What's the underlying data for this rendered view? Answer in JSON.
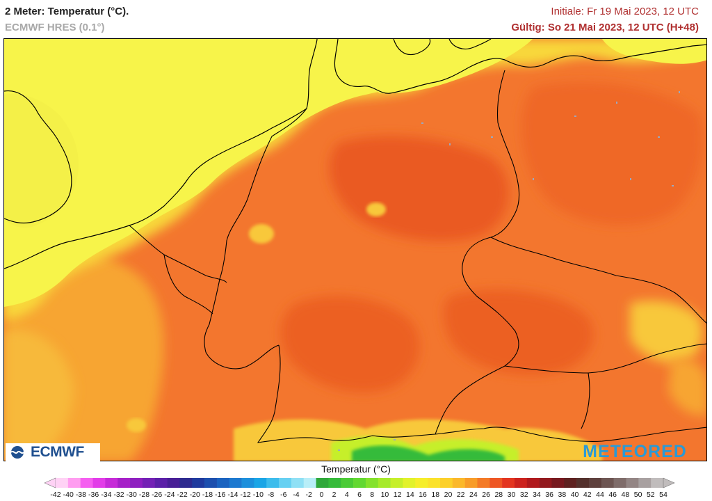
{
  "header": {
    "title": "2 Meter: Temperatur (°C).",
    "subtitle": "ECMWF HRES (0.1°)",
    "initial": "Initiale: Fr 19 Mai 2023, 12 UTC",
    "valid": "Gültig: So 21 Mai 2023, 12 UTC (H+48)"
  },
  "logos": {
    "left": "ECMWF",
    "right": "METEORED"
  },
  "legend": {
    "title": "Temperatur (°C)",
    "ticks": [
      "-42",
      "-40",
      "-38",
      "-36",
      "-34",
      "-32",
      "-30",
      "-28",
      "-26",
      "-24",
      "-22",
      "-20",
      "-18",
      "-16",
      "-14",
      "-12",
      "-10",
      "-8",
      "-6",
      "-4",
      "-2",
      "0",
      "2",
      "4",
      "6",
      "8",
      "10",
      "12",
      "14",
      "16",
      "18",
      "20",
      "22",
      "24",
      "26",
      "28",
      "30",
      "32",
      "34",
      "36",
      "38",
      "40",
      "42",
      "44",
      "46",
      "48",
      "50",
      "52",
      "54"
    ],
    "colors": [
      "#ffd2f5",
      "#ff9cf0",
      "#f55ef0",
      "#e23ce8",
      "#c62ad8",
      "#a620c8",
      "#8e1fc0",
      "#7320b5",
      "#5b1fa8",
      "#481e96",
      "#2d2a8f",
      "#1f3a9e",
      "#1c4fae",
      "#1a63c0",
      "#1c79d0",
      "#1c8fdc",
      "#1aa5e6",
      "#3cbcec",
      "#66d0f2",
      "#8fe0f5",
      "#b8eef8",
      "#2fa83a",
      "#36bb3a",
      "#4acb36",
      "#62d831",
      "#84e22c",
      "#a6ea2a",
      "#c6ef2a",
      "#e2f22a",
      "#f6ee2a",
      "#fbe22a",
      "#fcd02a",
      "#fbb82a",
      "#f89c28",
      "#f47a26",
      "#ee5624",
      "#e33520",
      "#cc221e",
      "#b0191d",
      "#92191e",
      "#77191f",
      "#5e2120",
      "#53302c",
      "#5e403d",
      "#6d5552",
      "#7f6c6a",
      "#938584",
      "#a8a0a0",
      "#c0bcbc"
    ]
  },
  "map": {
    "sea_color": "#f7f44a",
    "land_color": "#f3762e",
    "warm_color": "#ea5a22",
    "mild_color": "#f7a531",
    "coast_color": "#f8c83a",
    "alps_green": "#36bb3a",
    "border_color": "#000000"
  }
}
